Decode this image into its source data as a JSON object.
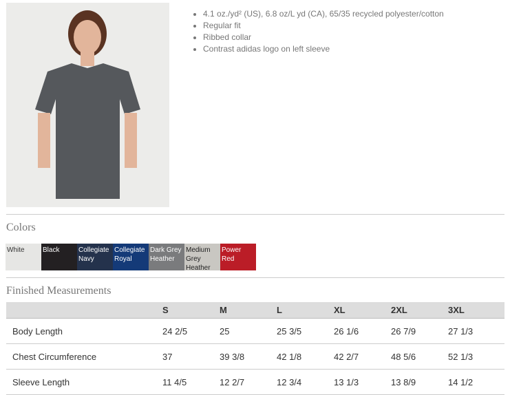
{
  "product": {
    "features": [
      "4.1 oz./yd² (US), 6.8 oz/L yd (CA), 65/35 recycled polyester/cotton",
      "Regular fit",
      "Ribbed collar",
      "Contrast adidas logo on left sleeve"
    ]
  },
  "colors": {
    "title": "Colors",
    "swatches": [
      {
        "name": "White",
        "hex": "#e6e6e4",
        "text": "#333"
      },
      {
        "name": "Black",
        "hex": "#232022",
        "text": "#fff"
      },
      {
        "name": "Collegiate Navy",
        "hex": "#24324c",
        "text": "#fff"
      },
      {
        "name": "Collegiate Royal",
        "hex": "#143a78",
        "text": "#fff"
      },
      {
        "name": "Dark Grey Heather",
        "hex": "#7a7b7d",
        "text": "#fff"
      },
      {
        "name": "Medium Grey Heather",
        "hex": "#c9c7c2",
        "text": "#222"
      },
      {
        "name": "Power Red",
        "hex": "#bb1d27",
        "text": "#fff"
      }
    ]
  },
  "measurements": {
    "title": "Finished Measurements",
    "sizes": [
      "S",
      "M",
      "L",
      "XL",
      "2XL",
      "3XL"
    ],
    "rows": [
      {
        "label": "Body Length",
        "values": [
          "24 2/5",
          "25",
          "25 3/5",
          "26 1/6",
          "26 7/9",
          "27 1/3"
        ]
      },
      {
        "label": "Chest Circumference",
        "values": [
          "37",
          "39 3/8",
          "42 1/8",
          "42 2/7",
          "48 5/6",
          "52 1/3"
        ]
      },
      {
        "label": "Sleeve Length",
        "values": [
          "11 4/5",
          "12 2/7",
          "12 3/4",
          "13 1/3",
          "13 8/9",
          "14 1/2"
        ]
      }
    ]
  }
}
